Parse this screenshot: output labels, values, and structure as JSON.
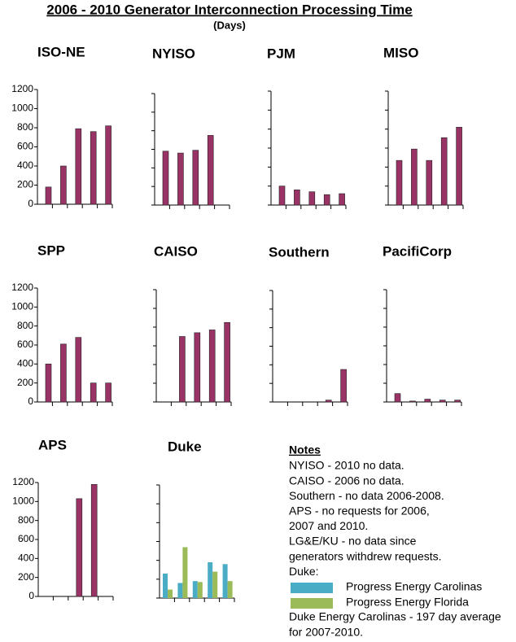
{
  "title": "2006 - 2010 Generator Interconnection Processing Time",
  "subtitle": "(Days)",
  "chart_data": [
    {
      "type": "bar",
      "title": "ISO-NE",
      "categories": [
        null,
        null,
        null,
        null,
        null
      ],
      "values": [
        180,
        400,
        790,
        760,
        820
      ],
      "color": "#993366",
      "ylim": [
        0,
        1200
      ],
      "yticks": [
        0,
        200,
        400,
        600,
        800,
        1000,
        1200
      ],
      "tick_labels": true
    },
    {
      "type": "bar",
      "title": "NYISO",
      "categories": [
        null,
        null,
        null,
        null,
        null
      ],
      "values": [
        580,
        560,
        590,
        750,
        null
      ],
      "color": "#993366",
      "ylim": [
        0,
        1200
      ],
      "yticks": [
        0,
        200,
        400,
        600,
        800,
        1000,
        1200
      ],
      "tick_labels": false
    },
    {
      "type": "bar",
      "title": "PJM",
      "categories": [
        null,
        null,
        null,
        null,
        null
      ],
      "values": [
        200,
        160,
        140,
        110,
        120
      ],
      "color": "#993366",
      "ylim": [
        0,
        1200
      ],
      "yticks": [
        0,
        200,
        400,
        600,
        800,
        1000,
        1200
      ],
      "tick_labels": false
    },
    {
      "type": "bar",
      "title": "MISO",
      "categories": [
        null,
        null,
        null,
        null,
        null
      ],
      "values": [
        470,
        590,
        470,
        710,
        820
      ],
      "color": "#993366",
      "ylim": [
        0,
        1200
      ],
      "yticks": [
        0,
        200,
        400,
        600,
        800,
        1000,
        1200
      ],
      "tick_labels": false
    },
    {
      "type": "bar",
      "title": "SPP",
      "categories": [
        null,
        null,
        null,
        null,
        null
      ],
      "values": [
        400,
        610,
        680,
        200,
        200
      ],
      "color": "#993366",
      "ylim": [
        0,
        1200
      ],
      "yticks": [
        0,
        200,
        400,
        600,
        800,
        1000,
        1200
      ],
      "tick_labels": true
    },
    {
      "type": "bar",
      "title": "CAISO",
      "categories": [
        null,
        null,
        null,
        null,
        null
      ],
      "values": [
        null,
        700,
        740,
        770,
        850
      ],
      "color": "#993366",
      "ylim": [
        0,
        1200
      ],
      "yticks": [
        0,
        200,
        400,
        600,
        800,
        1000,
        1200
      ],
      "tick_labels": false
    },
    {
      "type": "bar",
      "title": "Southern",
      "categories": [
        null,
        null,
        null,
        null,
        null
      ],
      "values": [
        null,
        null,
        null,
        20,
        350
      ],
      "color": "#993366",
      "ylim": [
        0,
        1200
      ],
      "yticks": [
        0,
        200,
        400,
        600,
        800,
        1000,
        1200
      ],
      "tick_labels": false
    },
    {
      "type": "bar",
      "title": "PacifiCorp",
      "categories": [
        null,
        null,
        null,
        null,
        null
      ],
      "values": [
        90,
        10,
        30,
        20,
        20
      ],
      "color": "#993366",
      "ylim": [
        0,
        1200
      ],
      "yticks": [
        0,
        200,
        400,
        600,
        800,
        1000,
        1200
      ],
      "tick_labels": false
    },
    {
      "type": "bar",
      "title": "APS",
      "categories": [
        null,
        null,
        null,
        null,
        null
      ],
      "values": [
        null,
        null,
        1030,
        1180,
        null
      ],
      "color": "#993366",
      "ylim": [
        0,
        1200
      ],
      "yticks": [
        0,
        200,
        400,
        600,
        800,
        1000,
        1200
      ],
      "tick_labels": true
    },
    {
      "type": "bar",
      "title": "Duke",
      "categories": [
        null,
        null,
        null,
        null,
        null
      ],
      "series": [
        {
          "name": "Progress Energy Carolinas",
          "color": "#4bacc6",
          "values": [
            260,
            160,
            180,
            380,
            360
          ]
        },
        {
          "name": "Progress Energy Florida",
          "color": "#9bbb59",
          "values": [
            90,
            540,
            170,
            280,
            180
          ]
        }
      ],
      "ylim": [
        0,
        1200
      ],
      "yticks": [
        0,
        200,
        400,
        600,
        800,
        1000,
        1200
      ],
      "tick_labels": false
    }
  ],
  "notes": {
    "title": "Notes",
    "lines": [
      "NYISO - 2010 no data.",
      "CAISO - 2006 no data.",
      "Southern - no data 2006-2008.",
      "APS - no requests for 2006,",
      "2007 and 2010.",
      "LG&E/KU - no data since",
      "generators withdrew requests.",
      "Duke:"
    ],
    "footer": [
      "Duke Energy Carolinas - 197 day average",
      "for 2007-2010."
    ]
  }
}
